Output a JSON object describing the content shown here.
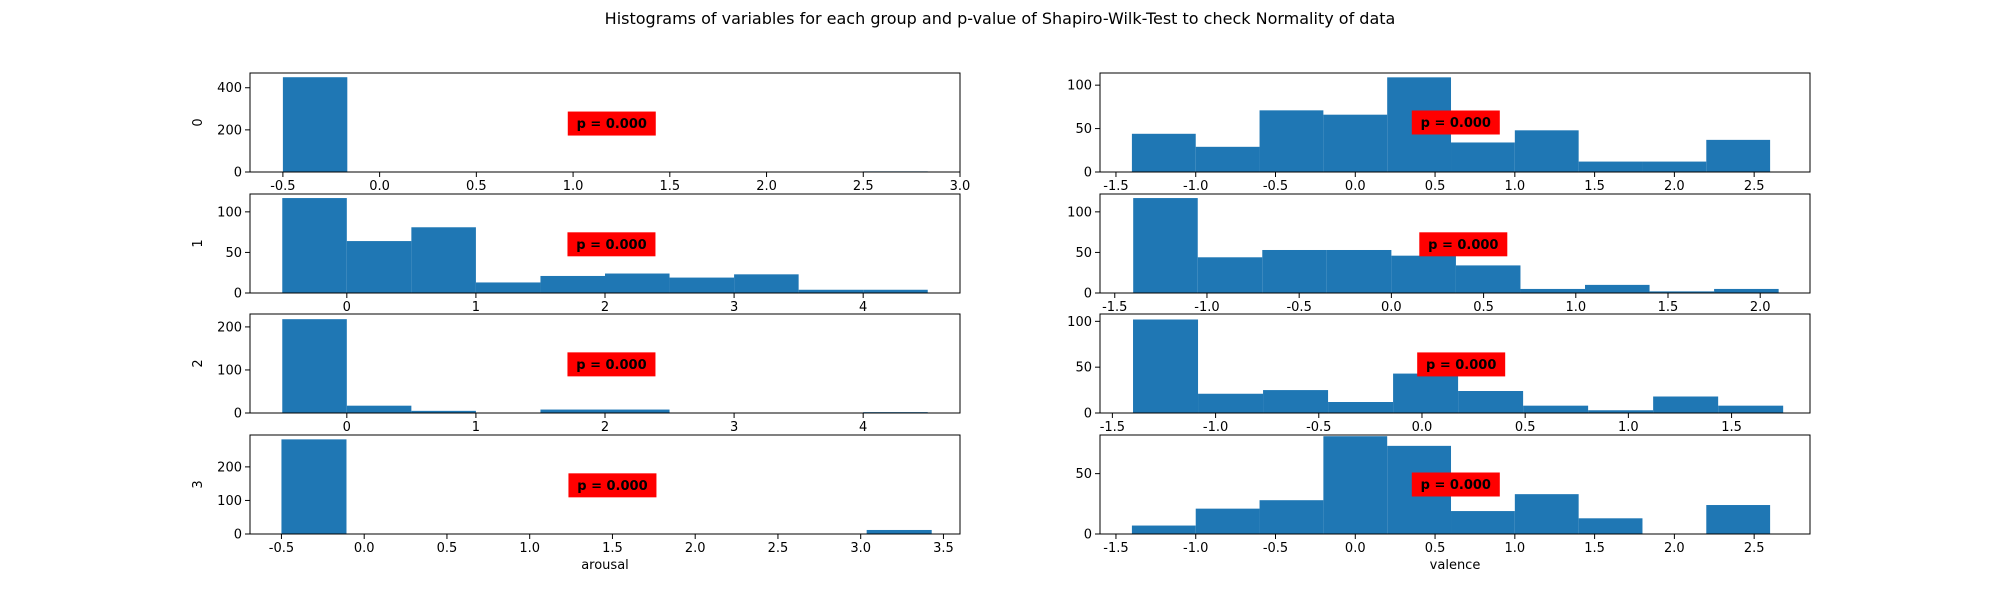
{
  "figure": {
    "title": "Histograms of variables for each group and p-value of Shapiro-Wilk-Test to check Normality of data"
  },
  "colors": {
    "bar": "#1f77b4",
    "pvalue_box": "#ff0000"
  },
  "chart_data": [
    {
      "type": "bar",
      "row": 0,
      "col": 0,
      "ylabel": "0",
      "xlabel": "",
      "xlim": [
        -0.67,
        3.0
      ],
      "ylim": [
        0,
        470
      ],
      "xticks": [
        "-0.5",
        "0.0",
        "0.5",
        "1.0",
        "1.5",
        "2.0",
        "2.5",
        "3.0"
      ],
      "yticks": [
        "0",
        "200",
        "400"
      ],
      "bins": [
        [
          -0.5,
          -0.167,
          450
        ],
        [
          2.5,
          2.833,
          3
        ]
      ],
      "pvalue": "p = 0.000",
      "pvalue_pos": [
        1.2,
        230
      ]
    },
    {
      "type": "bar",
      "row": 0,
      "col": 1,
      "ylabel": "",
      "xlabel": "",
      "xlim": [
        -1.6,
        2.85
      ],
      "ylim": [
        0,
        114
      ],
      "xticks": [
        "-1.5",
        "-1.0",
        "-0.5",
        "0.0",
        "0.5",
        "1.0",
        "1.5",
        "2.0",
        "2.5"
      ],
      "yticks": [
        "0",
        "50",
        "100"
      ],
      "bins": [
        [
          -1.4,
          -1.0,
          44
        ],
        [
          -1.0,
          -0.6,
          29
        ],
        [
          -0.6,
          -0.2,
          71
        ],
        [
          -0.2,
          0.2,
          66
        ],
        [
          0.2,
          0.6,
          109
        ],
        [
          0.6,
          1.0,
          34
        ],
        [
          1.0,
          1.4,
          48
        ],
        [
          1.4,
          1.8,
          12
        ],
        [
          1.8,
          2.2,
          12
        ],
        [
          2.2,
          2.6,
          37
        ]
      ],
      "pvalue": "p = 0.000",
      "pvalue_pos": [
        0.63,
        57
      ]
    },
    {
      "type": "bar",
      "row": 1,
      "col": 0,
      "ylabel": "1",
      "xlabel": "",
      "xlim": [
        -0.75,
        4.75
      ],
      "ylim": [
        0,
        122
      ],
      "xticks": [
        "0",
        "1",
        "2",
        "3",
        "4"
      ],
      "yticks": [
        "0",
        "50",
        "100"
      ],
      "bins": [
        [
          -0.5,
          0.0,
          117
        ],
        [
          0.0,
          0.5,
          64
        ],
        [
          0.5,
          1.0,
          81
        ],
        [
          1.0,
          1.5,
          13
        ],
        [
          1.5,
          2.0,
          21
        ],
        [
          2.0,
          2.5,
          24
        ],
        [
          2.5,
          3.0,
          19
        ],
        [
          3.0,
          3.5,
          23
        ],
        [
          3.5,
          4.0,
          4
        ],
        [
          4.0,
          4.5,
          4
        ]
      ],
      "pvalue": "p = 0.000",
      "pvalue_pos": [
        2.05,
        60
      ]
    },
    {
      "type": "bar",
      "row": 1,
      "col": 1,
      "ylabel": "",
      "xlabel": "",
      "xlim": [
        -1.58,
        2.27
      ],
      "ylim": [
        0,
        122
      ],
      "xticks": [
        "-1.5",
        "-1.0",
        "-0.5",
        "0.0",
        "0.5",
        "1.0",
        "1.5",
        "2.0"
      ],
      "yticks": [
        "0",
        "50",
        "100"
      ],
      "bins": [
        [
          -1.4,
          -1.05,
          117
        ],
        [
          -1.05,
          -0.7,
          44
        ],
        [
          -0.7,
          -0.35,
          53
        ],
        [
          -0.35,
          0.0,
          53
        ],
        [
          0.0,
          0.35,
          46
        ],
        [
          0.35,
          0.7,
          34
        ],
        [
          0.7,
          1.05,
          5
        ],
        [
          1.05,
          1.4,
          10
        ],
        [
          1.4,
          1.75,
          2
        ],
        [
          1.75,
          2.1,
          5
        ]
      ],
      "pvalue": "p = 0.000",
      "pvalue_pos": [
        0.39,
        60
      ]
    },
    {
      "type": "bar",
      "row": 2,
      "col": 0,
      "ylabel": "2",
      "xlabel": "",
      "xlim": [
        -0.75,
        4.75
      ],
      "ylim": [
        0,
        230
      ],
      "xticks": [
        "0",
        "1",
        "2",
        "3",
        "4"
      ],
      "yticks": [
        "0",
        "100",
        "200"
      ],
      "bins": [
        [
          -0.5,
          0.0,
          218
        ],
        [
          0.0,
          0.5,
          17
        ],
        [
          0.5,
          1.0,
          5
        ],
        [
          1.0,
          1.5,
          1
        ],
        [
          1.5,
          2.0,
          8
        ],
        [
          2.0,
          2.5,
          8
        ],
        [
          2.5,
          3.0,
          1
        ],
        [
          3.0,
          3.5,
          1
        ],
        [
          3.5,
          4.0,
          1
        ],
        [
          4.0,
          4.5,
          2
        ]
      ],
      "pvalue": "p = 0.000",
      "pvalue_pos": [
        2.05,
        113
      ]
    },
    {
      "type": "bar",
      "row": 2,
      "col": 1,
      "ylabel": "",
      "xlabel": "",
      "xlim": [
        -1.56,
        1.88
      ],
      "ylim": [
        0,
        108
      ],
      "xticks": [
        "-1.5",
        "-1.0",
        "-0.5",
        "0.0",
        "0.5",
        "1.0",
        "1.5"
      ],
      "yticks": [
        "0",
        "50",
        "100"
      ],
      "bins": [
        [
          -1.4,
          -1.085,
          102
        ],
        [
          -1.085,
          -0.77,
          21
        ],
        [
          -0.77,
          -0.455,
          25
        ],
        [
          -0.455,
          -0.14,
          12
        ],
        [
          -0.14,
          0.175,
          43
        ],
        [
          0.175,
          0.49,
          24
        ],
        [
          0.49,
          0.805,
          8
        ],
        [
          0.805,
          1.12,
          3
        ],
        [
          1.12,
          1.435,
          18
        ],
        [
          1.435,
          1.75,
          8
        ]
      ],
      "pvalue": "p = 0.000",
      "pvalue_pos": [
        0.19,
        53
      ]
    },
    {
      "type": "bar",
      "row": 3,
      "col": 0,
      "ylabel": "3",
      "xlabel": "arousal",
      "xlim": [
        -0.69,
        3.6
      ],
      "ylim": [
        0,
        295
      ],
      "xticks": [
        "-0.5",
        "0.0",
        "0.5",
        "1.0",
        "1.5",
        "2.0",
        "2.5",
        "3.0",
        "3.5"
      ],
      "yticks": [
        "0",
        "100",
        "200"
      ],
      "bins": [
        [
          -0.5,
          -0.107,
          282
        ],
        [
          3.036,
          3.429,
          12
        ]
      ],
      "pvalue": "p = 0.000",
      "pvalue_pos": [
        1.5,
        145
      ]
    },
    {
      "type": "bar",
      "row": 3,
      "col": 1,
      "ylabel": "",
      "xlabel": "valence",
      "xlim": [
        -1.6,
        2.85
      ],
      "ylim": [
        0,
        82
      ],
      "xticks": [
        "-1.5",
        "-1.0",
        "-0.5",
        "0.0",
        "0.5",
        "1.0",
        "1.5",
        "2.0",
        "2.5"
      ],
      "yticks": [
        "0",
        "50"
      ],
      "bins": [
        [
          -1.4,
          -1.0,
          7
        ],
        [
          -1.0,
          -0.6,
          21
        ],
        [
          -0.6,
          -0.2,
          28
        ],
        [
          -0.2,
          0.2,
          81
        ],
        [
          0.2,
          0.6,
          73
        ],
        [
          0.6,
          1.0,
          19
        ],
        [
          1.0,
          1.4,
          33
        ],
        [
          1.4,
          1.8,
          13
        ],
        [
          1.8,
          2.2,
          0
        ],
        [
          2.2,
          2.6,
          24
        ]
      ],
      "pvalue": "p = 0.000",
      "pvalue_pos": [
        0.63,
        41
      ]
    }
  ]
}
